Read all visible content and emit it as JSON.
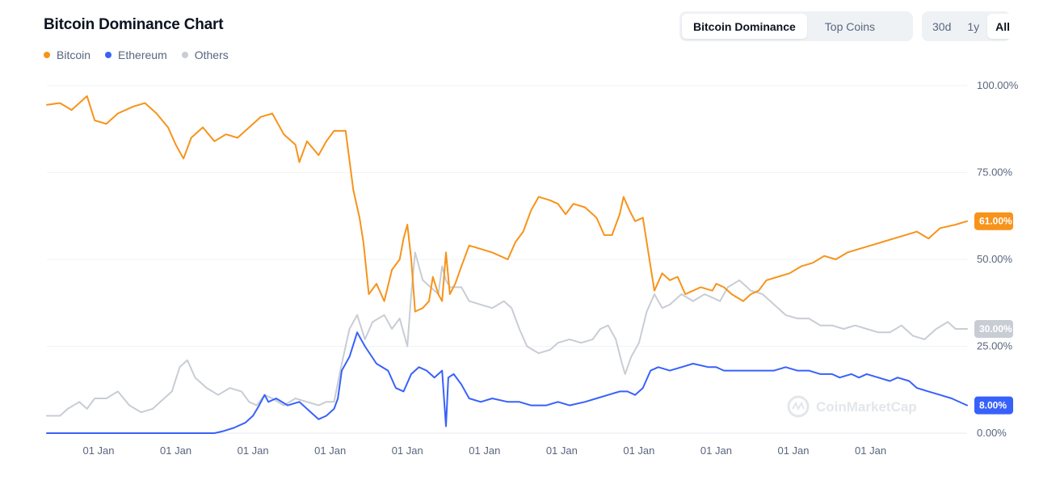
{
  "header": {
    "title": "Bitcoin Dominance Chart",
    "view_tabs": [
      {
        "label": "Bitcoin Dominance",
        "active": true
      },
      {
        "label": "Top Coins",
        "active": false
      }
    ],
    "range_tabs": [
      {
        "label": "30d",
        "active": false
      },
      {
        "label": "1y",
        "active": false
      },
      {
        "label": "All",
        "active": true
      }
    ]
  },
  "watermark": "CoinMarketCap",
  "chart_data": {
    "type": "line",
    "title": "Bitcoin Dominance Chart",
    "legend_position": "top-left",
    "grid": true,
    "y_axis_position": "right",
    "ylim": [
      0,
      100
    ],
    "yticks": [
      "100.00%",
      "75.00%",
      "50.00%",
      "25.00%",
      "0.00%"
    ],
    "yticks_values": [
      100,
      75,
      50,
      25,
      0
    ],
    "xlim": [
      2013.33,
      2025.25
    ],
    "xticks": [
      {
        "label": "01 Jan",
        "x": 2014
      },
      {
        "label": "01 Jan",
        "x": 2015
      },
      {
        "label": "01 Jan",
        "x": 2016
      },
      {
        "label": "01 Jan",
        "x": 2017
      },
      {
        "label": "01 Jan",
        "x": 2018
      },
      {
        "label": "01 Jan",
        "x": 2019
      },
      {
        "label": "01 Jan",
        "x": 2020
      },
      {
        "label": "01 Jan",
        "x": 2021
      },
      {
        "label": "01 Jan",
        "x": 2022
      },
      {
        "label": "01 Jan",
        "x": 2023
      },
      {
        "label": "01 Jan",
        "x": 2024
      }
    ],
    "series": [
      {
        "name": "Bitcoin",
        "color": "#f7931a",
        "last_label": "61.00%",
        "points": [
          [
            2013.33,
            94.5
          ],
          [
            2013.5,
            95
          ],
          [
            2013.65,
            93
          ],
          [
            2013.85,
            97
          ],
          [
            2013.95,
            90
          ],
          [
            2014.1,
            89
          ],
          [
            2014.25,
            92
          ],
          [
            2014.45,
            94
          ],
          [
            2014.6,
            95
          ],
          [
            2014.75,
            92
          ],
          [
            2014.9,
            88
          ],
          [
            2015.0,
            83
          ],
          [
            2015.1,
            79
          ],
          [
            2015.2,
            85
          ],
          [
            2015.35,
            88
          ],
          [
            2015.5,
            84
          ],
          [
            2015.65,
            86
          ],
          [
            2015.8,
            85
          ],
          [
            2015.95,
            88
          ],
          [
            2016.1,
            91
          ],
          [
            2016.25,
            92
          ],
          [
            2016.4,
            86
          ],
          [
            2016.55,
            83
          ],
          [
            2016.6,
            78
          ],
          [
            2016.7,
            84
          ],
          [
            2016.85,
            80
          ],
          [
            2016.95,
            84
          ],
          [
            2017.05,
            87
          ],
          [
            2017.2,
            87
          ],
          [
            2017.3,
            70
          ],
          [
            2017.38,
            62
          ],
          [
            2017.43,
            55
          ],
          [
            2017.5,
            40
          ],
          [
            2017.6,
            43
          ],
          [
            2017.7,
            38
          ],
          [
            2017.8,
            47
          ],
          [
            2017.9,
            50
          ],
          [
            2017.95,
            56
          ],
          [
            2018.0,
            60
          ],
          [
            2018.05,
            50
          ],
          [
            2018.1,
            35
          ],
          [
            2018.2,
            36
          ],
          [
            2018.28,
            38
          ],
          [
            2018.33,
            45
          ],
          [
            2018.4,
            40
          ],
          [
            2018.45,
            38
          ],
          [
            2018.5,
            52
          ],
          [
            2018.55,
            40
          ],
          [
            2018.62,
            43
          ],
          [
            2018.7,
            48
          ],
          [
            2018.8,
            54
          ],
          [
            2018.95,
            53
          ],
          [
            2019.1,
            52
          ],
          [
            2019.3,
            50
          ],
          [
            2019.4,
            55
          ],
          [
            2019.5,
            58
          ],
          [
            2019.6,
            64
          ],
          [
            2019.7,
            68
          ],
          [
            2019.85,
            67
          ],
          [
            2019.95,
            66
          ],
          [
            2020.05,
            63
          ],
          [
            2020.15,
            66
          ],
          [
            2020.3,
            65
          ],
          [
            2020.45,
            62
          ],
          [
            2020.55,
            57
          ],
          [
            2020.65,
            57
          ],
          [
            2020.75,
            63
          ],
          [
            2020.8,
            68
          ],
          [
            2020.88,
            64
          ],
          [
            2020.95,
            61
          ],
          [
            2021.05,
            62
          ],
          [
            2021.15,
            48
          ],
          [
            2021.2,
            41
          ],
          [
            2021.3,
            46
          ],
          [
            2021.4,
            44
          ],
          [
            2021.5,
            45
          ],
          [
            2021.6,
            40
          ],
          [
            2021.7,
            41
          ],
          [
            2021.8,
            42
          ],
          [
            2021.95,
            41
          ],
          [
            2022.0,
            43
          ],
          [
            2022.1,
            42
          ],
          [
            2022.2,
            40
          ],
          [
            2022.35,
            38
          ],
          [
            2022.45,
            40
          ],
          [
            2022.55,
            41
          ],
          [
            2022.65,
            44
          ],
          [
            2022.8,
            45
          ],
          [
            2022.95,
            46
          ],
          [
            2023.1,
            48
          ],
          [
            2023.25,
            49
          ],
          [
            2023.4,
            51
          ],
          [
            2023.55,
            50
          ],
          [
            2023.7,
            52
          ],
          [
            2023.85,
            53
          ],
          [
            2024.0,
            54
          ],
          [
            2024.15,
            55
          ],
          [
            2024.3,
            56
          ],
          [
            2024.45,
            57
          ],
          [
            2024.6,
            58
          ],
          [
            2024.75,
            56
          ],
          [
            2024.9,
            59
          ],
          [
            2025.1,
            60
          ],
          [
            2025.25,
            61
          ]
        ]
      },
      {
        "name": "Ethereum",
        "color": "#3861fb",
        "last_label": "8.00%",
        "points": [
          [
            2013.33,
            0
          ],
          [
            2015.5,
            0
          ],
          [
            2015.6,
            0.5
          ],
          [
            2015.75,
            1.5
          ],
          [
            2015.9,
            3
          ],
          [
            2016.0,
            5
          ],
          [
            2016.08,
            8
          ],
          [
            2016.15,
            11
          ],
          [
            2016.2,
            9
          ],
          [
            2016.3,
            10
          ],
          [
            2016.45,
            8
          ],
          [
            2016.6,
            9
          ],
          [
            2016.75,
            6
          ],
          [
            2016.85,
            4
          ],
          [
            2016.95,
            5
          ],
          [
            2017.05,
            7
          ],
          [
            2017.1,
            10
          ],
          [
            2017.15,
            18
          ],
          [
            2017.25,
            22
          ],
          [
            2017.35,
            29
          ],
          [
            2017.45,
            25
          ],
          [
            2017.6,
            20
          ],
          [
            2017.75,
            18
          ],
          [
            2017.85,
            13
          ],
          [
            2017.95,
            12
          ],
          [
            2018.05,
            17
          ],
          [
            2018.15,
            19
          ],
          [
            2018.25,
            18
          ],
          [
            2018.35,
            16
          ],
          [
            2018.45,
            18
          ],
          [
            2018.5,
            2
          ],
          [
            2018.53,
            16
          ],
          [
            2018.6,
            17
          ],
          [
            2018.7,
            14
          ],
          [
            2018.8,
            10
          ],
          [
            2018.95,
            9
          ],
          [
            2019.1,
            10
          ],
          [
            2019.3,
            9
          ],
          [
            2019.45,
            9
          ],
          [
            2019.6,
            8
          ],
          [
            2019.8,
            8
          ],
          [
            2019.95,
            9
          ],
          [
            2020.1,
            8
          ],
          [
            2020.3,
            9
          ],
          [
            2020.45,
            10
          ],
          [
            2020.6,
            11
          ],
          [
            2020.75,
            12
          ],
          [
            2020.85,
            12
          ],
          [
            2020.95,
            11
          ],
          [
            2021.05,
            13
          ],
          [
            2021.15,
            18
          ],
          [
            2021.25,
            19
          ],
          [
            2021.4,
            18
          ],
          [
            2021.55,
            19
          ],
          [
            2021.7,
            20
          ],
          [
            2021.9,
            19
          ],
          [
            2022.0,
            19
          ],
          [
            2022.1,
            18
          ],
          [
            2022.25,
            18
          ],
          [
            2022.45,
            18
          ],
          [
            2022.6,
            18
          ],
          [
            2022.75,
            18
          ],
          [
            2022.9,
            19
          ],
          [
            2023.05,
            18
          ],
          [
            2023.2,
            18
          ],
          [
            2023.35,
            17
          ],
          [
            2023.5,
            17
          ],
          [
            2023.6,
            16
          ],
          [
            2023.75,
            17
          ],
          [
            2023.85,
            16
          ],
          [
            2023.95,
            17
          ],
          [
            2024.1,
            16
          ],
          [
            2024.25,
            15
          ],
          [
            2024.35,
            16
          ],
          [
            2024.5,
            15
          ],
          [
            2024.6,
            13
          ],
          [
            2024.75,
            12
          ],
          [
            2024.9,
            11
          ],
          [
            2025.05,
            10
          ],
          [
            2025.25,
            8
          ]
        ]
      },
      {
        "name": "Others",
        "color": "#c8cdd4",
        "last_label": "30.00%",
        "points": [
          [
            2013.33,
            5
          ],
          [
            2013.5,
            5
          ],
          [
            2013.6,
            7
          ],
          [
            2013.75,
            9
          ],
          [
            2013.85,
            7
          ],
          [
            2013.95,
            10
          ],
          [
            2014.1,
            10
          ],
          [
            2014.25,
            12
          ],
          [
            2014.4,
            8
          ],
          [
            2014.55,
            6
          ],
          [
            2014.7,
            7
          ],
          [
            2014.85,
            10
          ],
          [
            2014.95,
            12
          ],
          [
            2015.05,
            19
          ],
          [
            2015.15,
            21
          ],
          [
            2015.25,
            16
          ],
          [
            2015.4,
            13
          ],
          [
            2015.55,
            11
          ],
          [
            2015.7,
            13
          ],
          [
            2015.85,
            12
          ],
          [
            2015.95,
            9
          ],
          [
            2016.05,
            8
          ],
          [
            2016.15,
            11
          ],
          [
            2016.25,
            10
          ],
          [
            2016.4,
            8
          ],
          [
            2016.55,
            10
          ],
          [
            2016.7,
            9
          ],
          [
            2016.85,
            8
          ],
          [
            2016.95,
            9
          ],
          [
            2017.05,
            9
          ],
          [
            2017.15,
            20
          ],
          [
            2017.25,
            30
          ],
          [
            2017.35,
            34
          ],
          [
            2017.45,
            27
          ],
          [
            2017.55,
            32
          ],
          [
            2017.7,
            34
          ],
          [
            2017.8,
            30
          ],
          [
            2017.9,
            33
          ],
          [
            2017.95,
            29
          ],
          [
            2018.0,
            25
          ],
          [
            2018.05,
            40
          ],
          [
            2018.1,
            52
          ],
          [
            2018.2,
            44
          ],
          [
            2018.3,
            42
          ],
          [
            2018.4,
            40
          ],
          [
            2018.45,
            48
          ],
          [
            2018.5,
            44
          ],
          [
            2018.55,
            42
          ],
          [
            2018.7,
            42
          ],
          [
            2018.8,
            38
          ],
          [
            2018.95,
            37
          ],
          [
            2019.1,
            36
          ],
          [
            2019.25,
            38
          ],
          [
            2019.35,
            36
          ],
          [
            2019.45,
            30
          ],
          [
            2019.55,
            25
          ],
          [
            2019.7,
            23
          ],
          [
            2019.85,
            24
          ],
          [
            2019.95,
            26
          ],
          [
            2020.1,
            27
          ],
          [
            2020.25,
            26
          ],
          [
            2020.4,
            27
          ],
          [
            2020.5,
            30
          ],
          [
            2020.6,
            31
          ],
          [
            2020.7,
            27
          ],
          [
            2020.78,
            20
          ],
          [
            2020.82,
            17
          ],
          [
            2020.9,
            22
          ],
          [
            2021.0,
            26
          ],
          [
            2021.1,
            35
          ],
          [
            2021.2,
            40
          ],
          [
            2021.3,
            36
          ],
          [
            2021.4,
            37
          ],
          [
            2021.55,
            40
          ],
          [
            2021.7,
            38
          ],
          [
            2021.85,
            40
          ],
          [
            2021.95,
            39
          ],
          [
            2022.05,
            38
          ],
          [
            2022.15,
            42
          ],
          [
            2022.3,
            44
          ],
          [
            2022.45,
            41
          ],
          [
            2022.6,
            40
          ],
          [
            2022.75,
            37
          ],
          [
            2022.9,
            34
          ],
          [
            2023.05,
            33
          ],
          [
            2023.2,
            33
          ],
          [
            2023.35,
            31
          ],
          [
            2023.5,
            31
          ],
          [
            2023.65,
            30
          ],
          [
            2023.8,
            31
          ],
          [
            2023.95,
            30
          ],
          [
            2024.1,
            29
          ],
          [
            2024.25,
            29
          ],
          [
            2024.4,
            31
          ],
          [
            2024.55,
            28
          ],
          [
            2024.7,
            27
          ],
          [
            2024.85,
            30
          ],
          [
            2025.0,
            32
          ],
          [
            2025.1,
            30
          ],
          [
            2025.25,
            30
          ]
        ]
      }
    ]
  }
}
